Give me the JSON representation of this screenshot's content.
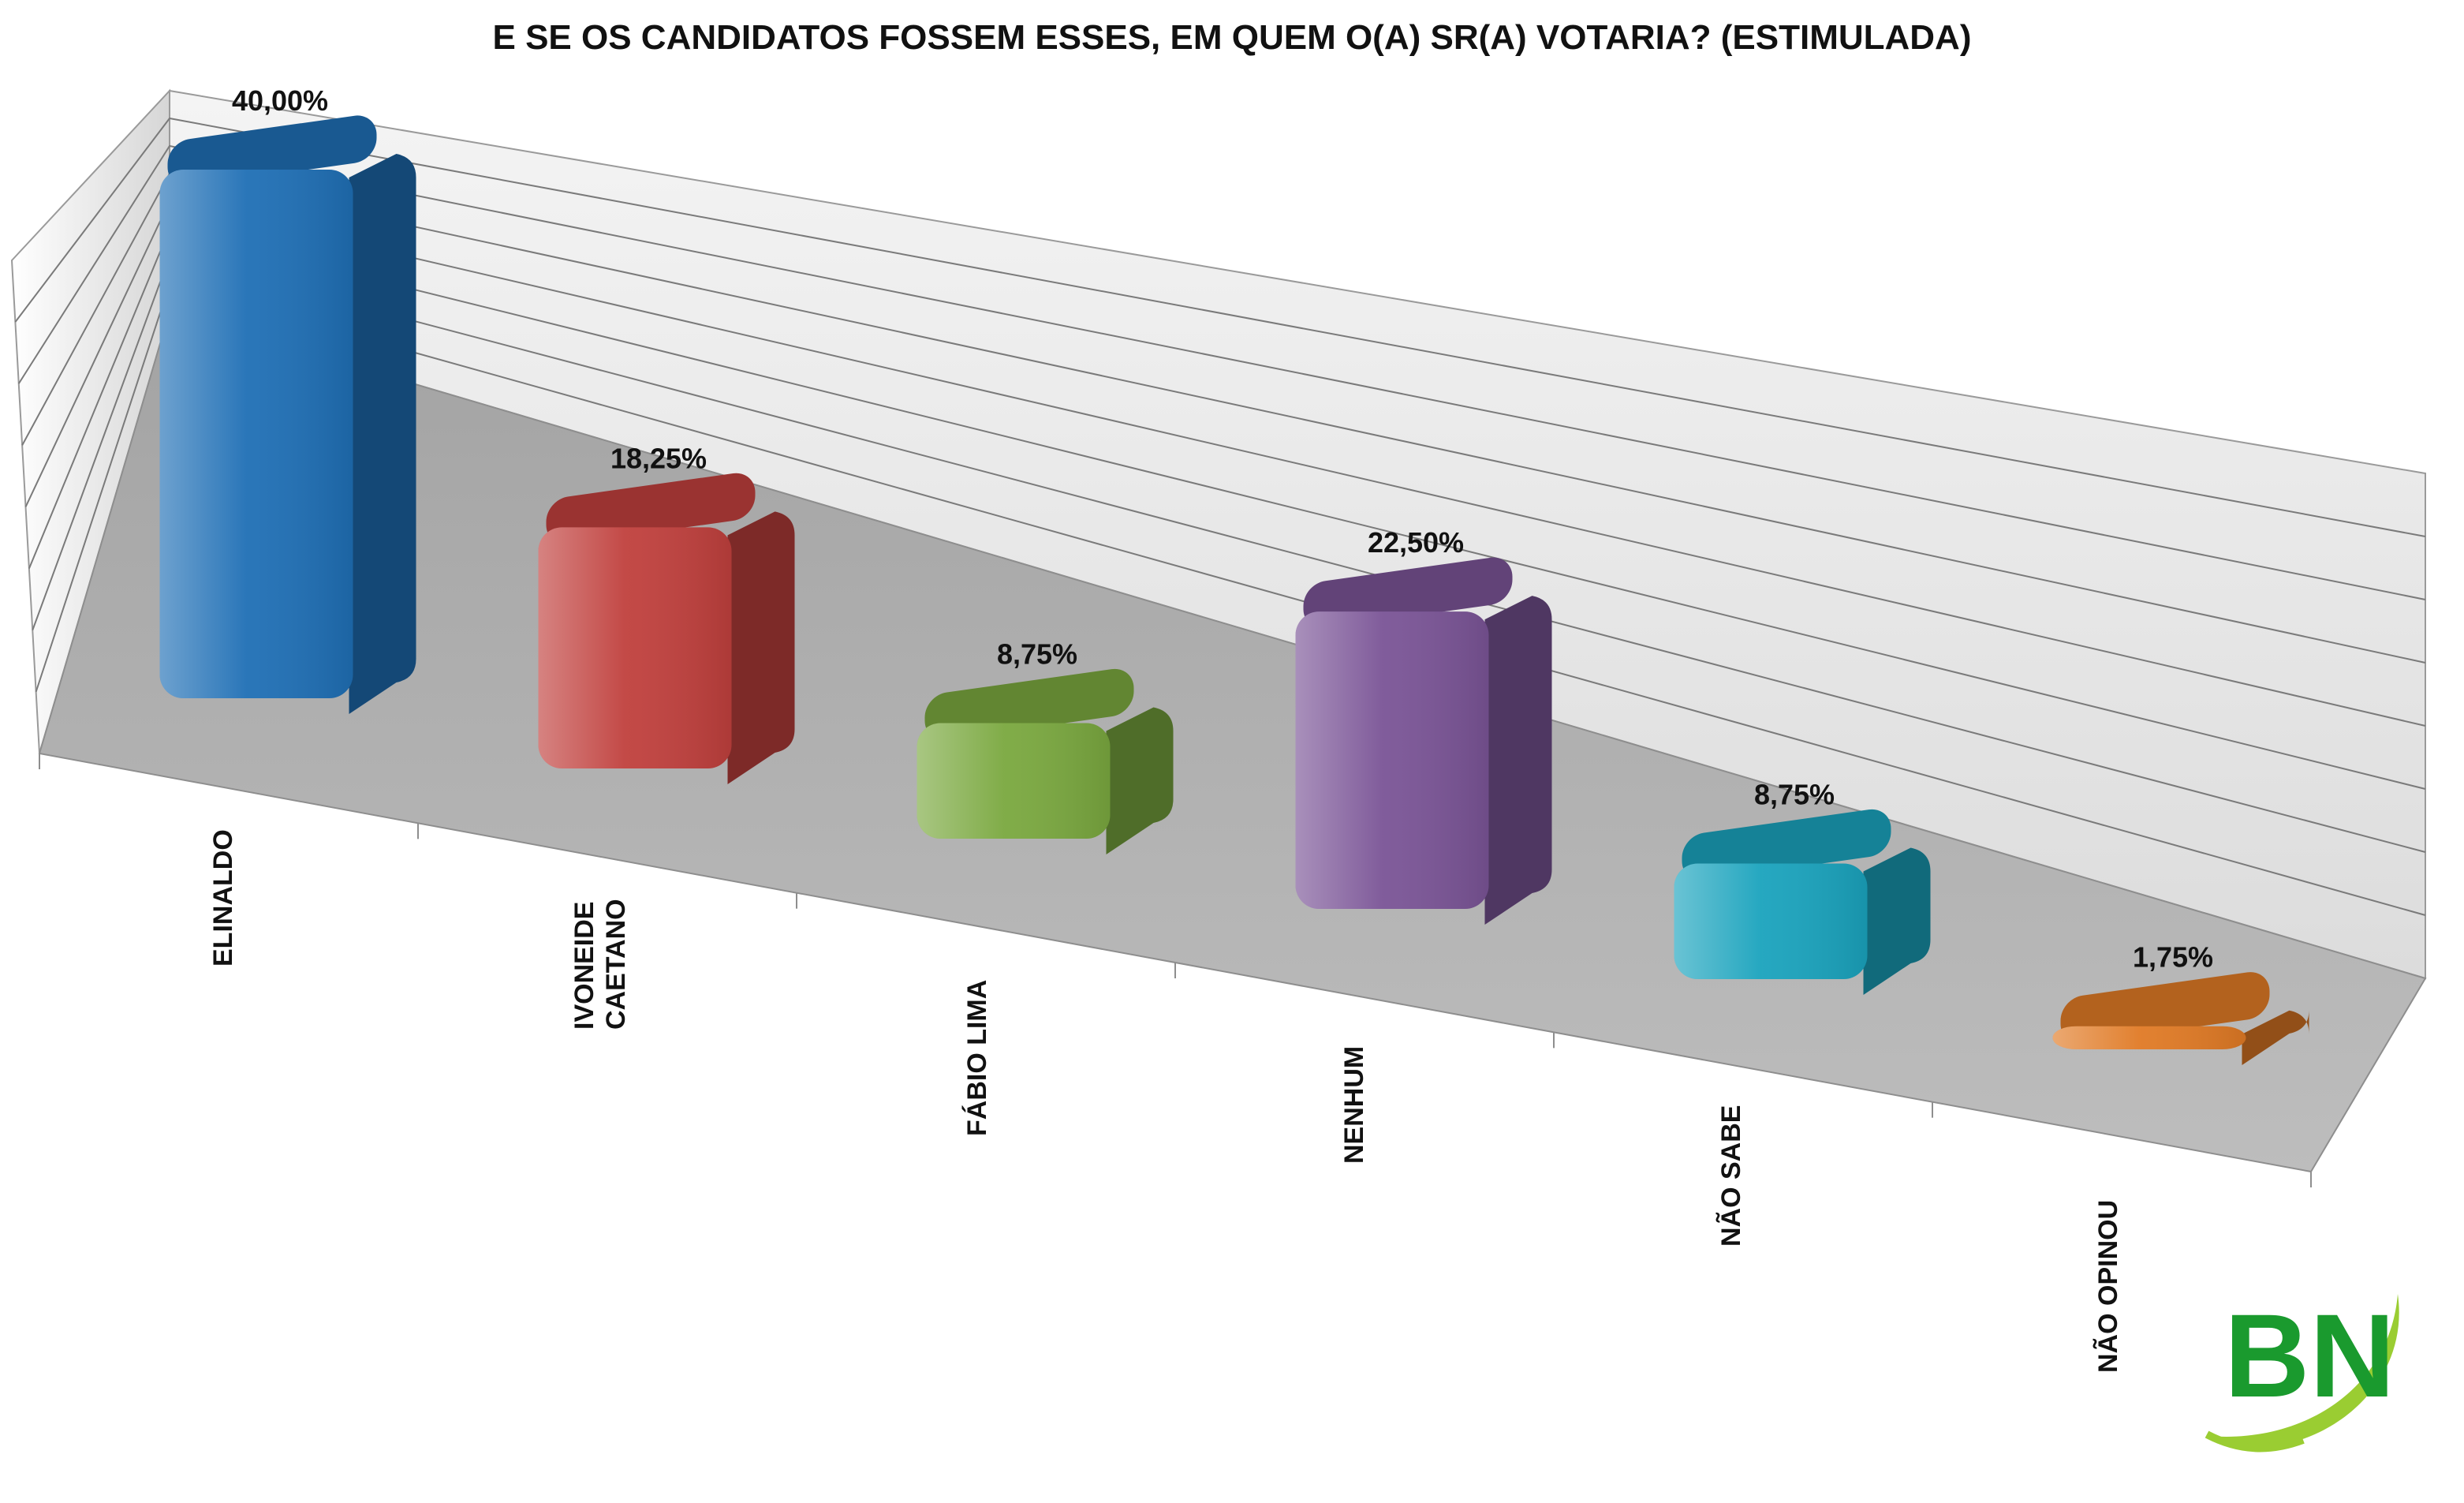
{
  "chart_data": {
    "type": "bar",
    "title": "E SE OS CANDIDATOS FOSSEM ESSES, EM QUEM O(A) SR(A) VOTARIA? (ESTIMULADA)",
    "categories": [
      [
        "ELINALDO"
      ],
      [
        "IVONEIDE",
        "CAETANO"
      ],
      [
        "FÁBIO LIMA"
      ],
      [
        "NENHUM"
      ],
      [
        "NÃO SABE"
      ],
      [
        "NÃO OPINOU"
      ]
    ],
    "values": [
      40.0,
      18.25,
      8.75,
      22.5,
      8.75,
      1.75
    ],
    "value_labels": [
      "40,00%",
      "18,25%",
      "8,75%",
      "22,50%",
      "8,75%",
      "1,75%"
    ],
    "colors": [
      "#1f6fb5",
      "#c0403d",
      "#7aa83f",
      "#7a5496",
      "#1aa3bd",
      "#e07a25"
    ],
    "ylim": [
      0,
      40
    ],
    "grid": true,
    "style": "3d"
  },
  "logo": {
    "text": "BN",
    "color": "#1a9a2e",
    "swoosh_color": "#9acd32"
  }
}
